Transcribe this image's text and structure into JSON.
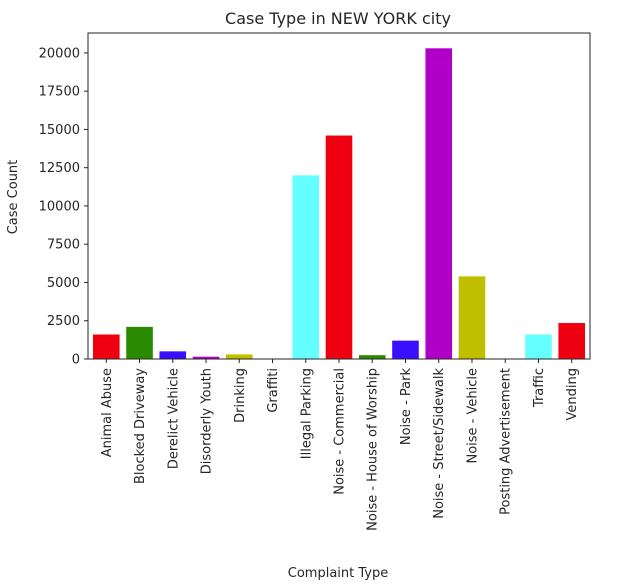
{
  "chart_data": {
    "type": "bar",
    "title": "Case Type in NEW YORK city",
    "xlabel": "Complaint Type",
    "ylabel": "Case Count",
    "ylim": [
      0,
      21300
    ],
    "yticks": [
      0,
      2500,
      5000,
      7500,
      10000,
      12500,
      15000,
      17500,
      20000
    ],
    "grid": false,
    "categories": [
      "Animal Abuse",
      "Blocked Driveway",
      "Derelict Vehicle",
      "Disorderly Youth",
      "Drinking",
      "Graffiti",
      "Illegal Parking",
      "Noise - Commercial",
      "Noise - House of Worship",
      "Noise - Park",
      "Noise - Street/Sidewalk",
      "Noise - Vehicle",
      "Posting Advertisement",
      "Traffic",
      "Vending"
    ],
    "values": [
      1600,
      2100,
      500,
      150,
      300,
      20,
      12000,
      14600,
      250,
      1200,
      20300,
      5400,
      20,
      1600,
      2350
    ],
    "colors": [
      "#ee0011",
      "#2a8a00",
      "#3a0eff",
      "#b000c8",
      "#bfbf00",
      "#66ffff",
      "#66ffff",
      "#ee0011",
      "#2a8a00",
      "#3a0eff",
      "#b000c8",
      "#bfbf00",
      "#66ffff",
      "#66ffff",
      "#ee0011"
    ]
  }
}
